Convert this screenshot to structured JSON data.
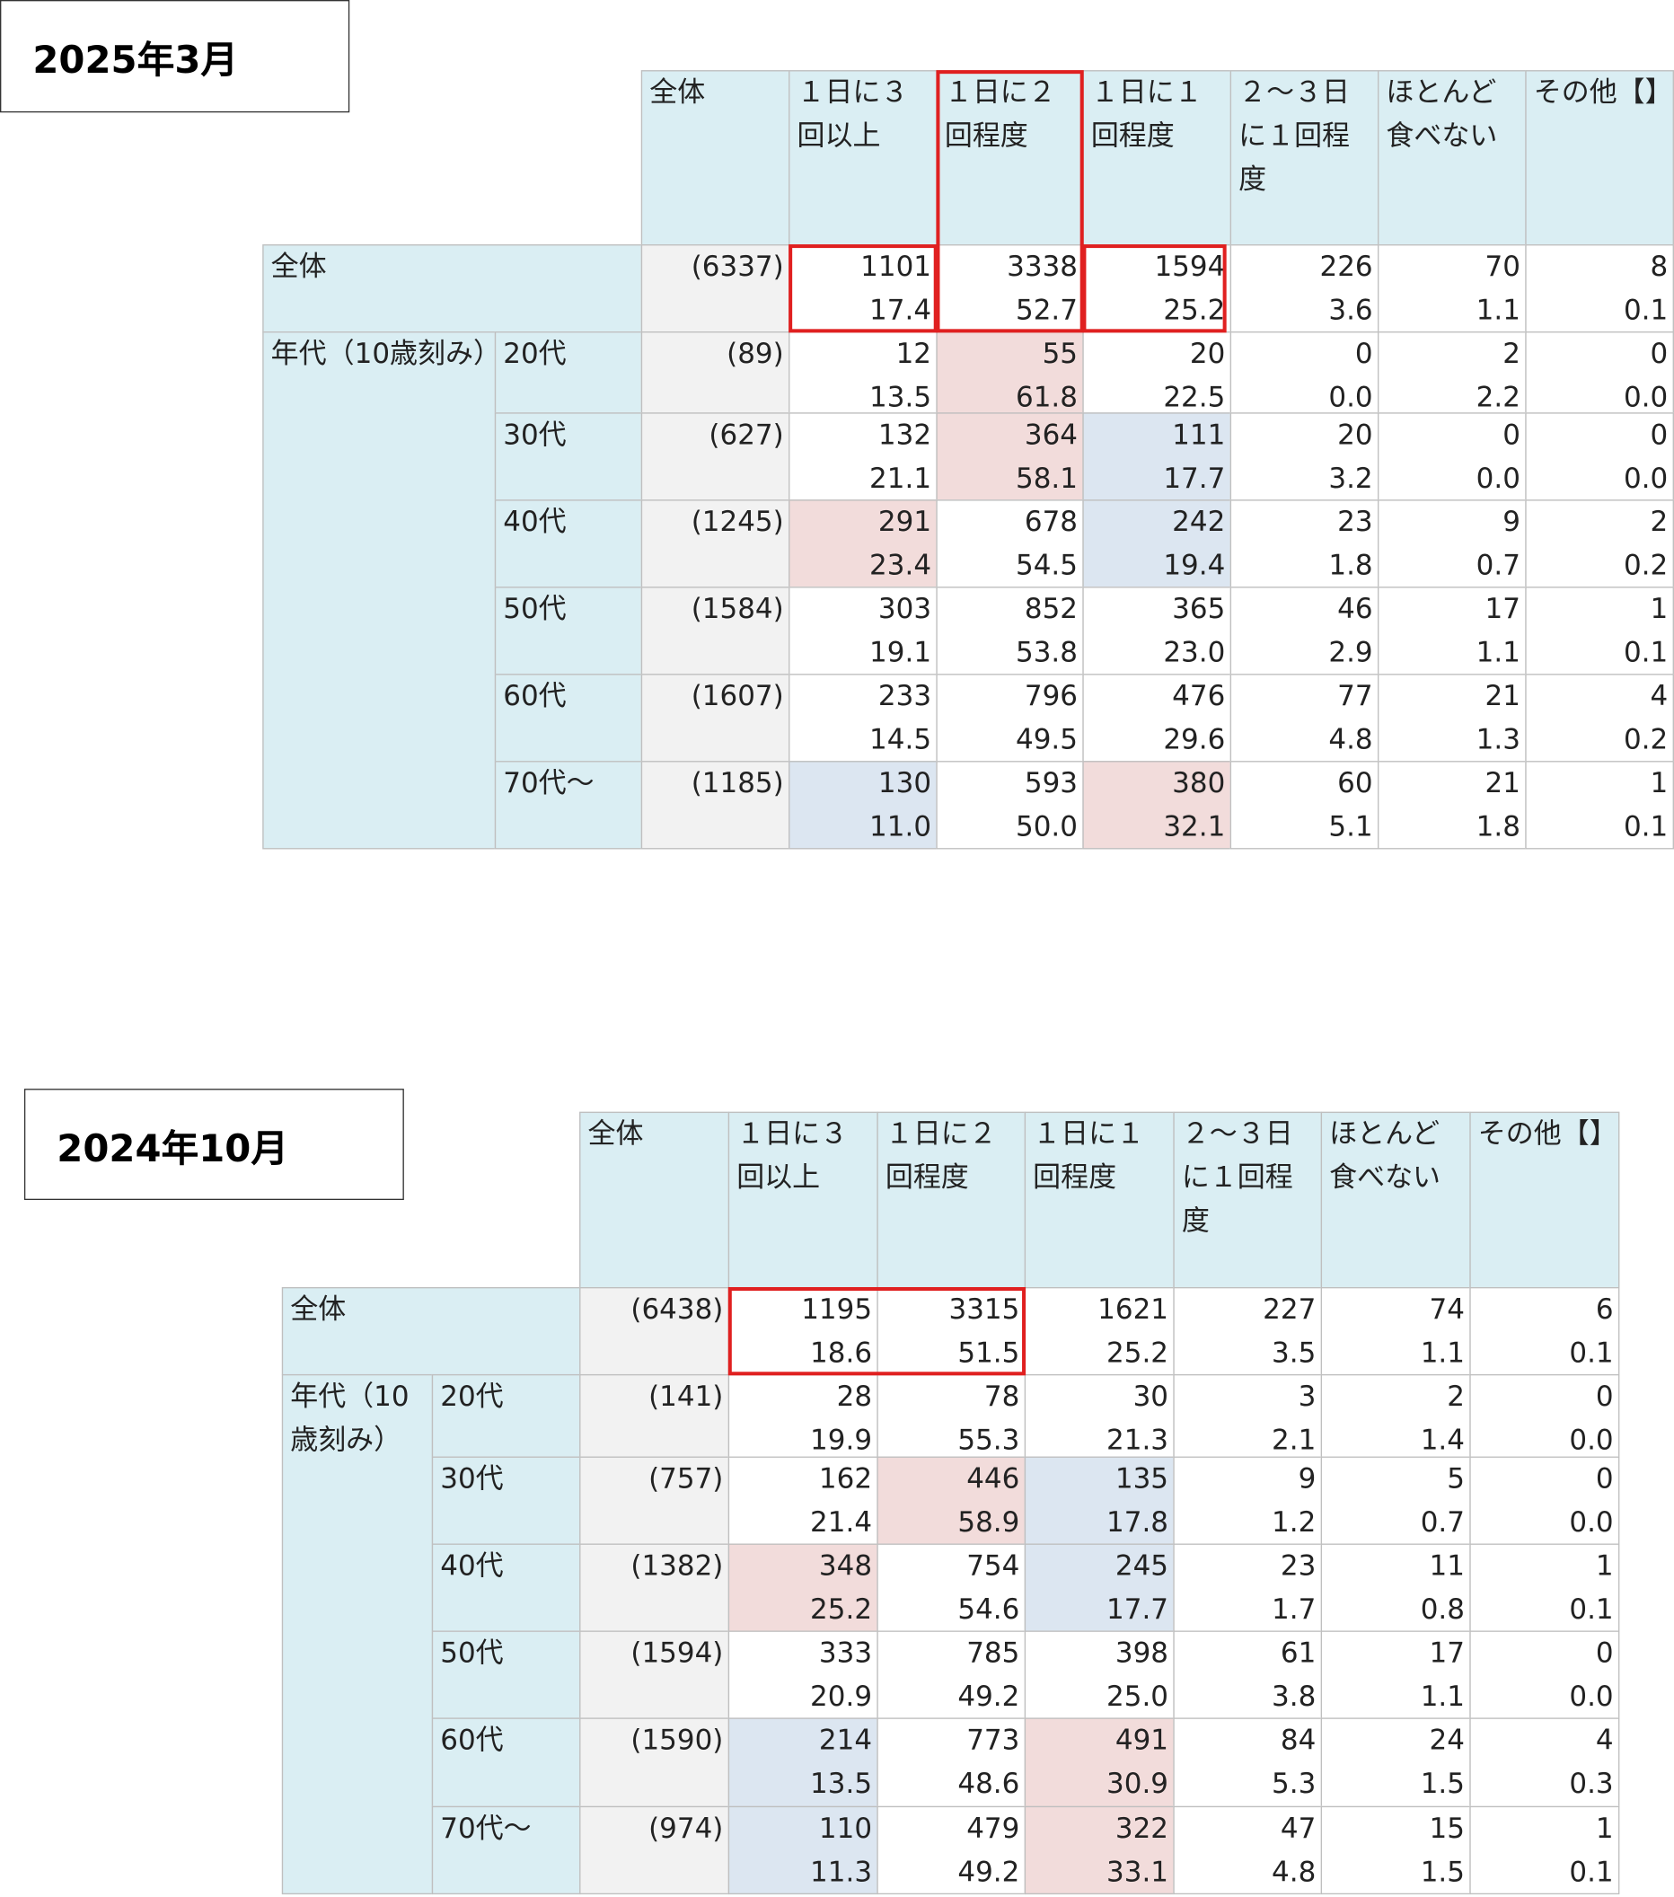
{
  "tables": [
    {
      "title": "2025年3月",
      "headers": [
        "全体",
        "１日に３回以上",
        "１日に２回程度",
        "１日に１回程度",
        "２～３日に１回程度",
        "ほとんど食べない",
        "その他【】"
      ],
      "total": {
        "label": "全体",
        "n": "(6337)",
        "cells": [
          [
            "1101",
            "17.4"
          ],
          [
            "3338",
            "52.7"
          ],
          [
            "1594",
            "25.2"
          ],
          [
            "226",
            "3.6"
          ],
          [
            "70",
            "1.1"
          ],
          [
            "8",
            "0.1"
          ]
        ]
      },
      "group": "年代（10歳刻み）",
      "rows": [
        {
          "label": "20代",
          "n": "(89)",
          "cells": [
            [
              "12",
              "13.5"
            ],
            [
              "55",
              "61.8"
            ],
            [
              "20",
              "22.5"
            ],
            [
              "0",
              "0.0"
            ],
            [
              "2",
              "2.2"
            ],
            [
              "0",
              "0.0"
            ]
          ]
        },
        {
          "label": "30代",
          "n": "(627)",
          "cells": [
            [
              "132",
              "21.1"
            ],
            [
              "364",
              "58.1"
            ],
            [
              "111",
              "17.7"
            ],
            [
              "20",
              "3.2"
            ],
            [
              "0",
              "0.0"
            ],
            [
              "0",
              "0.0"
            ]
          ]
        },
        {
          "label": "40代",
          "n": "(1245)",
          "cells": [
            [
              "291",
              "23.4"
            ],
            [
              "678",
              "54.5"
            ],
            [
              "242",
              "19.4"
            ],
            [
              "23",
              "1.8"
            ],
            [
              "9",
              "0.7"
            ],
            [
              "2",
              "0.2"
            ]
          ]
        },
        {
          "label": "50代",
          "n": "(1584)",
          "cells": [
            [
              "303",
              "19.1"
            ],
            [
              "852",
              "53.8"
            ],
            [
              "365",
              "23.0"
            ],
            [
              "46",
              "2.9"
            ],
            [
              "17",
              "1.1"
            ],
            [
              "1",
              "0.1"
            ]
          ]
        },
        {
          "label": "60代",
          "n": "(1607)",
          "cells": [
            [
              "233",
              "14.5"
            ],
            [
              "796",
              "49.5"
            ],
            [
              "476",
              "29.6"
            ],
            [
              "77",
              "4.8"
            ],
            [
              "21",
              "1.3"
            ],
            [
              "4",
              "0.2"
            ]
          ]
        },
        {
          "label": "70代～",
          "n": "(1185)",
          "cells": [
            [
              "130",
              "11.0"
            ],
            [
              "593",
              "50.0"
            ],
            [
              "380",
              "32.1"
            ],
            [
              "60",
              "5.1"
            ],
            [
              "21",
              "1.8"
            ],
            [
              "1",
              "0.1"
            ]
          ]
        }
      ]
    },
    {
      "title": "2024年10月",
      "headers": [
        "全体",
        "１日に３回以上",
        "１日に２回程度",
        "１日に１回程度",
        "２～３日に１回程度",
        "ほとんど食べない",
        "その他【】"
      ],
      "total": {
        "label": "全体",
        "n": "(6438)",
        "cells": [
          [
            "1195",
            "18.6"
          ],
          [
            "3315",
            "51.5"
          ],
          [
            "1621",
            "25.2"
          ],
          [
            "227",
            "3.5"
          ],
          [
            "74",
            "1.1"
          ],
          [
            "6",
            "0.1"
          ]
        ]
      },
      "group": "年代（10歳刻み）",
      "rows": [
        {
          "label": "20代",
          "n": "(141)",
          "cells": [
            [
              "28",
              "19.9"
            ],
            [
              "78",
              "55.3"
            ],
            [
              "30",
              "21.3"
            ],
            [
              "3",
              "2.1"
            ],
            [
              "2",
              "1.4"
            ],
            [
              "0",
              "0.0"
            ]
          ]
        },
        {
          "label": "30代",
          "n": "(757)",
          "cells": [
            [
              "162",
              "21.4"
            ],
            [
              "446",
              "58.9"
            ],
            [
              "135",
              "17.8"
            ],
            [
              "9",
              "1.2"
            ],
            [
              "5",
              "0.7"
            ],
            [
              "0",
              "0.0"
            ]
          ]
        },
        {
          "label": "40代",
          "n": "(1382)",
          "cells": [
            [
              "348",
              "25.2"
            ],
            [
              "754",
              "54.6"
            ],
            [
              "245",
              "17.7"
            ],
            [
              "23",
              "1.7"
            ],
            [
              "11",
              "0.8"
            ],
            [
              "1",
              "0.1"
            ]
          ]
        },
        {
          "label": "50代",
          "n": "(1594)",
          "cells": [
            [
              "333",
              "20.9"
            ],
            [
              "785",
              "49.2"
            ],
            [
              "398",
              "25.0"
            ],
            [
              "61",
              "3.8"
            ],
            [
              "17",
              "1.1"
            ],
            [
              "0",
              "0.0"
            ]
          ]
        },
        {
          "label": "60代",
          "n": "(1590)",
          "cells": [
            [
              "214",
              "13.5"
            ],
            [
              "773",
              "48.6"
            ],
            [
              "491",
              "30.9"
            ],
            [
              "84",
              "5.3"
            ],
            [
              "24",
              "1.5"
            ],
            [
              "4",
              "0.3"
            ]
          ]
        },
        {
          "label": "70代～",
          "n": "(974)",
          "cells": [
            [
              "110",
              "11.3"
            ],
            [
              "479",
              "49.2"
            ],
            [
              "322",
              "33.1"
            ],
            [
              "47",
              "4.8"
            ],
            [
              "15",
              "1.5"
            ],
            [
              "1",
              "0.1"
            ]
          ]
        }
      ]
    }
  ]
}
